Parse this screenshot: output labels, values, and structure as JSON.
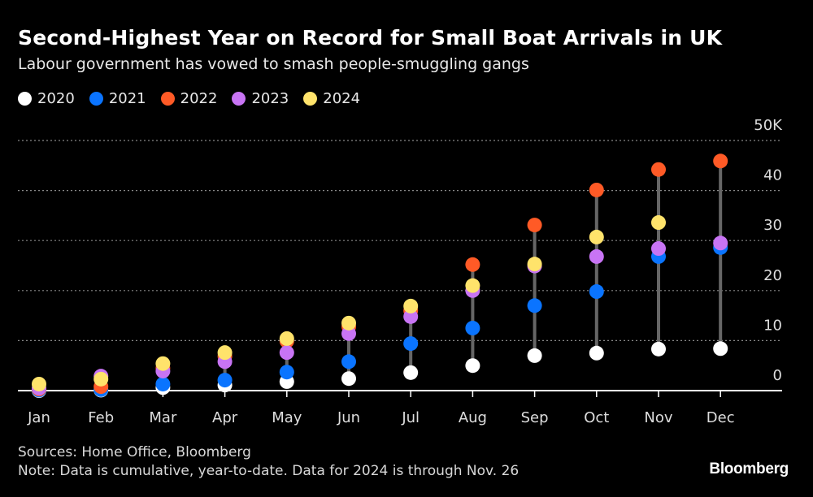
{
  "title": "Second-Highest Year on Record for Small Boat Arrivals in UK",
  "subtitle": "Labour government has vowed to smash people-smuggling gangs",
  "footer": {
    "sources": "Sources: Home Office, Bloomberg",
    "note": "Note: Data is cumulative, year-to-date. Data for 2024 is through Nov. 26"
  },
  "logo": "Bloomberg",
  "chart_data": {
    "type": "scatter",
    "categories": [
      "Jan",
      "Feb",
      "Mar",
      "Apr",
      "May",
      "Jun",
      "Jul",
      "Aug",
      "Sep",
      "Oct",
      "Nov",
      "Dec"
    ],
    "y_ticks": [
      "0",
      "10",
      "20",
      "30",
      "40",
      "50K"
    ],
    "ylim": [
      0,
      50000
    ],
    "grid": true,
    "legend_placement": "top-left",
    "series": [
      {
        "name": "2020",
        "color": "#ffffff",
        "values": [
          0,
          100,
          600,
          1100,
          1800,
          2400,
          3600,
          5000,
          7000,
          7500,
          8300,
          8400
        ]
      },
      {
        "name": "2021",
        "color": "#0a74ff",
        "values": [
          100,
          200,
          1300,
          2100,
          3700,
          5800,
          9400,
          12500,
          17000,
          19800,
          26800,
          28600
        ]
      },
      {
        "name": "2022",
        "color": "#ff5a26",
        "values": [
          300,
          800,
          4500,
          6900,
          9900,
          12800,
          16000,
          25200,
          33100,
          40100,
          44200,
          45900
        ]
      },
      {
        "name": "2023",
        "color": "#c874f4",
        "values": [
          500,
          2900,
          3900,
          5800,
          7600,
          11400,
          14800,
          20000,
          24900,
          26800,
          28400,
          29500
        ]
      },
      {
        "name": "2024",
        "color": "#ffe36b",
        "values": [
          1300,
          2300,
          5400,
          7600,
          10400,
          13500,
          16900,
          21000,
          25300,
          30700,
          33600,
          null
        ]
      }
    ]
  }
}
